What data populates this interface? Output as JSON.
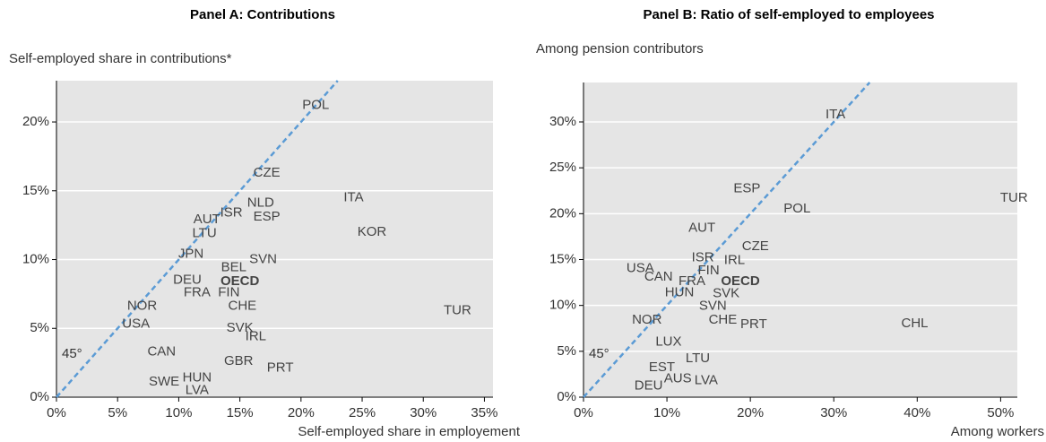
{
  "chart_data": [
    {
      "type": "scatter",
      "title": "Panel A: Contributions",
      "ylabel": "Self-employed share in contributions*",
      "xlabel": "Self-employed share in employement",
      "annotation": "45°",
      "diagonal": true,
      "grid": true,
      "color": "#444444",
      "diagonal_color": "#5b9bd5",
      "bold_labels": [
        "OECD"
      ],
      "xlim": [
        0,
        35.7
      ],
      "ylim": [
        0,
        23
      ],
      "xticks": [
        {
          "value": 0,
          "label": "0%"
        },
        {
          "value": 5,
          "label": "5%"
        },
        {
          "value": 10,
          "label": "10%"
        },
        {
          "value": 15,
          "label": "15%"
        },
        {
          "value": 20,
          "label": "20%"
        },
        {
          "value": 25,
          "label": "25%"
        },
        {
          "value": 30,
          "label": "30%"
        },
        {
          "value": 35,
          "label": "35%"
        }
      ],
      "yticks": [
        {
          "value": 0,
          "label": "0%"
        },
        {
          "value": 5,
          "label": "5%"
        },
        {
          "value": 10,
          "label": "10%"
        },
        {
          "value": 15,
          "label": "15%"
        },
        {
          "value": 20,
          "label": "20%"
        }
      ],
      "labels": [
        "POL",
        "CZE",
        "ITA",
        "NLD",
        "ESP",
        "ISR",
        "AUT",
        "LTU",
        "KOR",
        "JPN",
        "SVN",
        "BEL",
        "DEU",
        "OECD",
        "FRA",
        "FIN",
        "NOR",
        "CHE",
        "TUR",
        "USA",
        "SVK",
        "IRL",
        "CAN",
        "GBR",
        "PRT",
        "HUN",
        "SWE",
        "LVA"
      ],
      "x": [
        21.2,
        17.2,
        24.3,
        16.7,
        17.2,
        14.3,
        12.3,
        12.1,
        25.8,
        11.0,
        16.9,
        14.5,
        10.7,
        15.0,
        11.5,
        14.1,
        7.0,
        15.2,
        32.8,
        6.5,
        15.0,
        16.3,
        8.6,
        14.9,
        18.3,
        11.5,
        8.8,
        11.5
      ],
      "y": [
        21.2,
        16.3,
        14.5,
        14.1,
        13.1,
        13.4,
        12.9,
        11.9,
        12.0,
        10.4,
        10.0,
        9.4,
        8.5,
        8.4,
        7.6,
        7.6,
        6.6,
        6.6,
        6.3,
        5.3,
        5.0,
        4.4,
        3.3,
        2.6,
        2.1,
        1.4,
        1.1,
        0.5
      ]
    },
    {
      "type": "scatter",
      "title": "Panel B: Ratio of self-employed to employees",
      "ylabel": "Among pension contributors",
      "xlabel": "Among workers",
      "annotation": "45°",
      "diagonal": true,
      "grid": true,
      "color": "#444444",
      "diagonal_color": "#5b9bd5",
      "bold_labels": [
        "OECD"
      ],
      "xlim": [
        0,
        52
      ],
      "ylim": [
        0,
        34.3
      ],
      "xticks": [
        {
          "value": 0,
          "label": "0%"
        },
        {
          "value": 10,
          "label": "10%"
        },
        {
          "value": 20,
          "label": "20%"
        },
        {
          "value": 30,
          "label": "30%"
        },
        {
          "value": 40,
          "label": "40%"
        },
        {
          "value": 50,
          "label": "50%"
        }
      ],
      "yticks": [
        {
          "value": 0,
          "label": "0%"
        },
        {
          "value": 5,
          "label": "5%"
        },
        {
          "value": 10,
          "label": "10%"
        },
        {
          "value": 15,
          "label": "15%"
        },
        {
          "value": 20,
          "label": "20%"
        },
        {
          "value": 25,
          "label": "25%"
        },
        {
          "value": 30,
          "label": "30%"
        }
      ],
      "labels": [
        "ITA",
        "ESP",
        "TUR",
        "POL",
        "AUT",
        "CZE",
        "ISR",
        "IRL",
        "USA",
        "FIN",
        "CAN",
        "FRA",
        "OECD",
        "HUN",
        "SVK",
        "SVN",
        "CHE",
        "PRT",
        "NOR",
        "CHL",
        "LUX",
        "LTU",
        "EST",
        "AUS",
        "LVA",
        "DEU"
      ],
      "x": [
        30.2,
        19.6,
        51.6,
        25.6,
        14.2,
        20.6,
        14.3,
        18.1,
        6.8,
        15.0,
        9.0,
        13.0,
        18.8,
        11.5,
        17.1,
        15.5,
        16.7,
        20.4,
        7.6,
        39.7,
        10.2,
        13.7,
        9.4,
        11.3,
        14.7,
        7.8
      ],
      "y": [
        30.8,
        22.7,
        21.7,
        20.5,
        18.4,
        16.4,
        15.2,
        14.9,
        14.0,
        13.8,
        13.1,
        12.6,
        12.6,
        11.4,
        11.3,
        9.9,
        8.4,
        7.9,
        8.4,
        8.0,
        6.0,
        4.2,
        3.2,
        2.0,
        1.8,
        1.2
      ]
    }
  ]
}
